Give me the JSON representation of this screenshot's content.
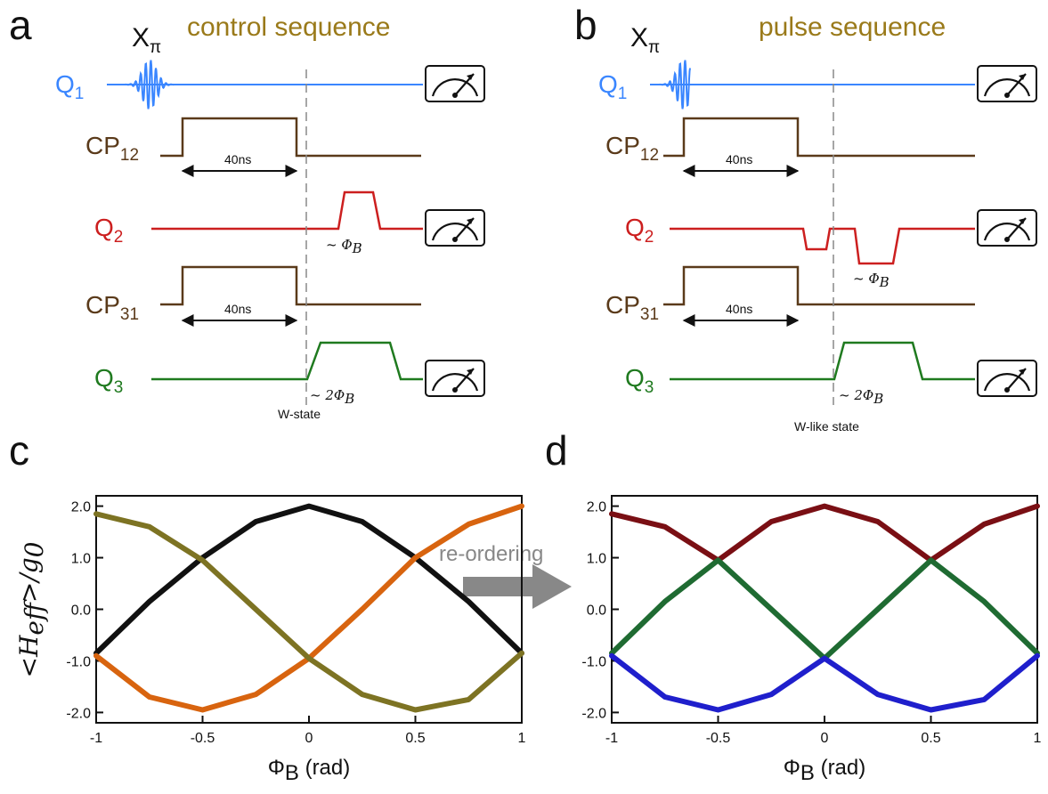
{
  "panels": {
    "a": {
      "letter": "a",
      "title": "control sequence",
      "state_label": "W-state"
    },
    "b": {
      "letter": "b",
      "title": "pulse sequence",
      "state_label": "W-like state"
    },
    "c": {
      "letter": "c"
    },
    "d": {
      "letter": "d"
    }
  },
  "sequence": {
    "xpi_main": "X",
    "xpi_sub": "π",
    "channels": [
      {
        "id": "Q1",
        "main": "Q",
        "sub": "1",
        "color": "#3a86ff"
      },
      {
        "id": "CP12",
        "main": "CP",
        "sub": "12",
        "color": "#5a3a1a"
      },
      {
        "id": "Q2",
        "main": "Q",
        "sub": "2",
        "color": "#cc1f1f"
      },
      {
        "id": "CP31",
        "main": "CP",
        "sub": "31",
        "color": "#5a3a1a"
      },
      {
        "id": "Q3",
        "main": "Q",
        "sub": "3",
        "color": "#1f7a1f"
      }
    ],
    "duration_label": "40ns",
    "q2_amp": "~ Φ",
    "q3_amp": "~ 2Φ",
    "amp_sub": "B"
  },
  "arrow_label": "re-ordering",
  "chart_data": [
    {
      "type": "line",
      "panel": "c",
      "xlim": [
        -1,
        1
      ],
      "ylim": [
        -2.2,
        2.2
      ],
      "xticks": [
        "-1",
        "-0.5",
        "0",
        "0.5",
        "1"
      ],
      "yticks": [
        "2.0",
        "1.0",
        "0.0",
        "-1.0",
        "-2.0"
      ],
      "xlabel_main": "Φ",
      "xlabel_sub": "B",
      "xlabel_unit": " (rad)",
      "ylabel": "<H",
      "ylabel_sub": "eff",
      "ylabel_tail": ">/g",
      "ylabel_sub2": "0",
      "series": [
        {
          "color": "#111111",
          "x": [
            -1,
            -0.75,
            -0.5,
            -0.25,
            0,
            0.25,
            0.5,
            0.75,
            1
          ],
          "y": [
            -0.85,
            0.15,
            1.0,
            1.7,
            2.0,
            1.7,
            1.0,
            0.15,
            -0.85
          ]
        },
        {
          "color": "#d8640f",
          "x": [
            -1,
            -0.75,
            -0.5,
            -0.25,
            0,
            0.25,
            0.5,
            0.75,
            1
          ],
          "y": [
            -0.9,
            -1.7,
            -1.95,
            -1.65,
            -0.95,
            0.0,
            1.0,
            1.65,
            2.0
          ]
        },
        {
          "color": "#7d7323",
          "x": [
            -1,
            -0.75,
            -0.5,
            -0.25,
            0,
            0.25,
            0.5,
            0.75,
            1
          ],
          "y": [
            1.85,
            1.6,
            0.95,
            0.0,
            -0.95,
            -1.65,
            -1.95,
            -1.75,
            -0.85
          ]
        }
      ]
    },
    {
      "type": "line",
      "panel": "d",
      "xlim": [
        -1,
        1
      ],
      "ylim": [
        -2.2,
        2.2
      ],
      "xticks": [
        "-1",
        "-0.5",
        "0",
        "0.5",
        "1"
      ],
      "yticks": [
        "2.0",
        "1.0",
        "0.0",
        "-1.0",
        "-2.0"
      ],
      "xlabel_main": "Φ",
      "xlabel_sub": "B",
      "xlabel_unit": " (rad)",
      "series": [
        {
          "color": "#7a0f14",
          "x": [
            -1,
            -0.75,
            -0.5,
            -0.25,
            0,
            0.25,
            0.5,
            0.75,
            1
          ],
          "y": [
            1.85,
            1.6,
            0.95,
            1.7,
            2.0,
            1.7,
            0.95,
            1.65,
            2.0
          ]
        },
        {
          "color": "#1f6b32",
          "x": [
            -1,
            -0.75,
            -0.5,
            -0.25,
            0,
            0.25,
            0.5,
            0.75,
            1
          ],
          "y": [
            -0.85,
            0.15,
            0.95,
            0.0,
            -0.95,
            0.0,
            0.95,
            0.15,
            -0.85
          ]
        },
        {
          "color": "#1f1fcc",
          "x": [
            -1,
            -0.75,
            -0.5,
            -0.25,
            0,
            0.25,
            0.5,
            0.75,
            1
          ],
          "y": [
            -0.9,
            -1.7,
            -1.95,
            -1.65,
            -0.95,
            -1.65,
            -1.95,
            -1.75,
            -0.9
          ]
        }
      ]
    }
  ]
}
